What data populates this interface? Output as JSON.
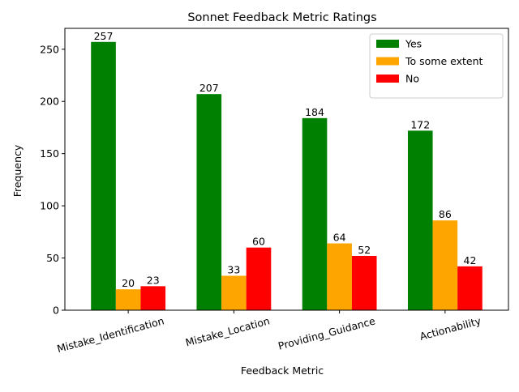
{
  "chart_data": {
    "type": "bar",
    "title": "Sonnet Feedback Metric Ratings",
    "xlabel": "Feedback Metric",
    "ylabel": "Frequency",
    "categories": [
      "Mistake_Identification",
      "Mistake_Location",
      "Providing_Guidance",
      "Actionability"
    ],
    "series": [
      {
        "name": "Yes",
        "color": "#008000",
        "values": [
          257,
          207,
          184,
          172
        ]
      },
      {
        "name": "To some extent",
        "color": "#ffa500",
        "values": [
          20,
          33,
          64,
          86
        ]
      },
      {
        "name": "No",
        "color": "#ff0000",
        "values": [
          23,
          60,
          52,
          42
        ]
      }
    ],
    "ylim": [
      0,
      270
    ],
    "yticks": [
      0,
      50,
      100,
      150,
      200,
      250
    ],
    "grid": false,
    "legend_position": "top-right",
    "data_labels": true
  }
}
